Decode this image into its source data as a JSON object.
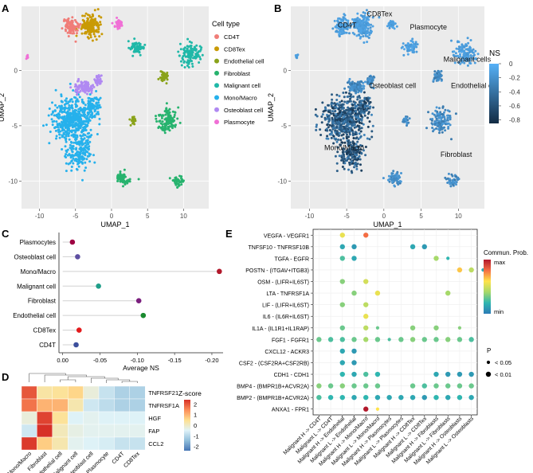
{
  "panel_labels": [
    "A",
    "B",
    "C",
    "D",
    "E"
  ],
  "chart_data": [
    {
      "id": "A",
      "type": "scatter",
      "title": "",
      "xlabel": "UMAP_1",
      "ylabel": "UMAP_2",
      "xlim": [
        -12.5,
        13.5
      ],
      "ylim": [
        -12.5,
        5.8
      ],
      "xticks": [
        -10,
        -5,
        0,
        5,
        10
      ],
      "yticks": [
        -10,
        -5,
        0
      ],
      "legend_title": "Cell type",
      "legend_position": "right",
      "series": [
        {
          "name": "CD4T",
          "color": "#f07d78"
        },
        {
          "name": "CD8Tex",
          "color": "#c99a05"
        },
        {
          "name": "Endothelial cell",
          "color": "#8aa31a"
        },
        {
          "name": "Fibroblast",
          "color": "#27b36e"
        },
        {
          "name": "Malignant cell",
          "color": "#20b8a8"
        },
        {
          "name": "Mono/Macro",
          "color": "#26b1ec"
        },
        {
          "name": "Osteoblast cell",
          "color": "#b089f2"
        },
        {
          "name": "Plasmocyte",
          "color": "#f070d6"
        }
      ],
      "clusters": [
        {
          "series": "Mono/Macro",
          "x": -5.3,
          "y": -4.5,
          "sx": 2.6,
          "sy": 1.8,
          "n": 500
        },
        {
          "series": "Mono/Macro",
          "x": -4.3,
          "y": -7.5,
          "sx": 1.6,
          "sy": 1.3,
          "n": 150
        },
        {
          "series": "Mono/Macro",
          "x": -2.6,
          "y": -3.2,
          "sx": 0.9,
          "sy": 0.8,
          "n": 80
        },
        {
          "series": "Osteoblast cell",
          "x": -3.8,
          "y": -1.5,
          "sx": 1.2,
          "sy": 0.45,
          "n": 100
        },
        {
          "series": "Osteoblast cell",
          "x": -1.8,
          "y": -0.9,
          "sx": 0.5,
          "sy": 0.4,
          "n": 40
        },
        {
          "series": "CD8Tex",
          "x": -2.9,
          "y": 4.0,
          "sx": 1.2,
          "sy": 0.9,
          "n": 170
        },
        {
          "series": "CD4T",
          "x": -5.6,
          "y": 4.0,
          "sx": 0.9,
          "sy": 0.8,
          "n": 110
        },
        {
          "series": "Plasmocyte",
          "x": 1.0,
          "y": 4.2,
          "sx": 0.5,
          "sy": 0.35,
          "n": 40
        },
        {
          "series": "Plasmocyte",
          "x": -11.7,
          "y": 1.2,
          "sx": 0.15,
          "sy": 0.2,
          "n": 10
        },
        {
          "series": "Malignant cell",
          "x": 3.5,
          "y": 2.1,
          "sx": 0.9,
          "sy": 0.5,
          "n": 60
        },
        {
          "series": "Malignant cell",
          "x": 11.0,
          "y": 1.5,
          "sx": 1.3,
          "sy": 1.0,
          "n": 120
        },
        {
          "series": "Endothelial cell",
          "x": 7.3,
          "y": -0.6,
          "sx": 0.6,
          "sy": 0.5,
          "n": 50
        },
        {
          "series": "Endothelial cell",
          "x": 3.0,
          "y": -4.5,
          "sx": 0.4,
          "sy": 0.4,
          "n": 20
        },
        {
          "series": "Fibroblast",
          "x": 7.7,
          "y": -4.5,
          "sx": 1.3,
          "sy": 1.0,
          "n": 110
        },
        {
          "series": "Fibroblast",
          "x": 1.5,
          "y": -9.8,
          "sx": 0.9,
          "sy": 0.5,
          "n": 60
        },
        {
          "series": "Fibroblast",
          "x": 9.2,
          "y": -10.0,
          "sx": 0.8,
          "sy": 0.5,
          "n": 40
        }
      ]
    },
    {
      "id": "B",
      "type": "scatter",
      "title": "",
      "xlabel": "UMAP_1",
      "ylabel": "UMAP_2",
      "xlim": [
        -12.5,
        13.5
      ],
      "ylim": [
        -12.5,
        5.8
      ],
      "xticks": [
        -10,
        -5,
        0,
        5,
        10
      ],
      "yticks": [
        -10,
        -5,
        0
      ],
      "colorbar_title": "NS",
      "colorbar_range": [
        -0.85,
        0.0
      ],
      "colorbar_ticks": [
        0.0,
        -0.2,
        -0.4,
        -0.6,
        -0.8
      ],
      "color_low": "#132b43",
      "color_high": "#56b1f7",
      "annotations": [
        {
          "text": "CD4T",
          "x": -6.2,
          "y": 3.9
        },
        {
          "text": "CD8Tex",
          "x": -2.3,
          "y": 4.9
        },
        {
          "text": "Plasmocyte",
          "x": 3.5,
          "y": 3.7
        },
        {
          "text": "Malignant cells",
          "x": 8.0,
          "y": 0.8
        },
        {
          "text": "Osteoblast cell",
          "x": -2.0,
          "y": -1.6
        },
        {
          "text": "Endothelial cell",
          "x": 9.0,
          "y": -1.6
        },
        {
          "text": "Mono/Macro",
          "x": -8.0,
          "y": -7.2
        },
        {
          "text": "Fibroblast",
          "x": 7.6,
          "y": -7.8
        }
      ]
    },
    {
      "id": "C",
      "type": "scatter",
      "title": "",
      "xlabel": "Average NS",
      "ylabel": "",
      "xlim": [
        0.005,
        -0.215
      ],
      "xticks": [
        0.0,
        -0.05,
        -0.1,
        -0.15,
        -0.2
      ],
      "xticklabels": [
        "0.00",
        "-0.05",
        "-0.10",
        "-0.15",
        "-0.20"
      ],
      "categories": [
        "Plasmocytes",
        "Osteoblast cell",
        "Mono/Macro",
        "Malignant cell",
        "Fibroblast",
        "Endothelial cell",
        "CD8Tex",
        "CD4T"
      ],
      "values": [
        -0.013,
        -0.02,
        -0.21,
        -0.048,
        -0.102,
        -0.108,
        -0.022,
        -0.018
      ],
      "colors": [
        "#9e0142",
        "#5e4fa2",
        "#b2182b",
        "#1f9e89",
        "#7b1f7e",
        "#1a8a2f",
        "#e31a1c",
        "#3c4f9c"
      ]
    },
    {
      "id": "D",
      "type": "heatmap",
      "title": "",
      "colorbar_title": "Z-score",
      "colorbar_range": [
        -2.4,
        2.4
      ],
      "colorbar_ticks": [
        2,
        1,
        0,
        -1,
        -2
      ],
      "columns": [
        "Mono/Macro",
        "Fibroblast",
        "Endothelial cell",
        "Malignant cell",
        "Osteoblast cell",
        "Plasmocyte",
        "CD4T",
        "CD8Tex"
      ],
      "rows": [
        "TNFRSF21",
        "TNFRSF1A",
        "HGF",
        "FAP",
        "CCL2"
      ],
      "values": [
        [
          2.0,
          0.3,
          0.4,
          0.6,
          -0.2,
          -0.8,
          -1.1,
          -1.1
        ],
        [
          1.7,
          1.0,
          1.0,
          0.2,
          -0.7,
          -0.9,
          -1.1,
          -1.1
        ],
        [
          -0.2,
          2.2,
          0.4,
          -0.5,
          -0.4,
          -0.5,
          -0.5,
          -0.5
        ],
        [
          -0.7,
          2.4,
          0.1,
          -0.3,
          -0.4,
          -0.4,
          -0.4,
          -0.4
        ],
        [
          2.3,
          0.7,
          0.2,
          -0.4,
          -0.5,
          -0.6,
          -0.8,
          -0.8
        ]
      ]
    },
    {
      "id": "E",
      "type": "scatter",
      "title": "",
      "rows": [
        "VEGFA - VEGFR1",
        "TNFSF10 - TNFRSF10B",
        "TGFA - EGFR",
        "POSTN - (ITGAV+ITGB3)",
        "OSM - (LIFR+IL6ST)",
        "LTA - TNFRSF1A",
        "LIF - (LIFR+IL6ST)",
        "IL6 - (IL6R+IL6ST)",
        "IL1A - (IL1R1+IL1RAP)",
        "FGF1 - FGFR1",
        "CXCL12 - ACKR3",
        "CSF2 - (CSF2RA+CSF2RB)",
        "CDH1 - CDH1",
        "BMP4 - (BMPR1B+ACVR2A)",
        "BMP2 - (BMPR1B+ACVR2A)",
        "ANXA1 - FPR1"
      ],
      "columns": [
        "Malignant H -> CD4T",
        "Malignant L -> CD4T",
        "Malignant H -> Endothelial",
        "Malignant L -> Endothelial",
        "Malignant H -> Mono/Macro",
        "Malignant L -> Mono/Macro",
        "Malignant H -> Plasmocytes",
        "Malignant L -> Plasmocytes",
        "Malignant H -> CD8Tex",
        "Malignant L -> CD8Tex",
        "Malignant H -> Fibroblasts",
        "Malignant L -> Fibroblasts",
        "Malignant H -> Osteoblasts",
        "Malignant L -> Osteoblasts"
      ],
      "colorbar_title": "Commun. Prob.",
      "colorbar_labels": [
        "max",
        "min"
      ],
      "size_legend_title": "P",
      "size_legend_labels": [
        "< 0.05",
        "< 0.01"
      ],
      "points": [
        [
          0,
          2,
          0.55,
          2
        ],
        [
          0,
          4,
          0.8,
          2
        ],
        [
          1,
          2,
          0.15,
          2
        ],
        [
          1,
          3,
          0.1,
          2
        ],
        [
          1,
          8,
          0.15,
          2
        ],
        [
          1,
          9,
          0.1,
          2
        ],
        [
          2,
          2,
          0.25,
          2
        ],
        [
          2,
          3,
          0.15,
          2
        ],
        [
          2,
          10,
          0.4,
          2
        ],
        [
          2,
          11,
          0.2,
          1
        ],
        [
          3,
          12,
          0.65,
          2
        ],
        [
          3,
          13,
          0.45,
          2
        ],
        [
          3,
          14,
          0.15,
          1
        ],
        [
          4,
          2,
          0.35,
          2
        ],
        [
          4,
          4,
          0.5,
          2
        ],
        [
          5,
          3,
          0.35,
          2
        ],
        [
          5,
          5,
          0.55,
          2
        ],
        [
          5,
          11,
          0.4,
          2
        ],
        [
          6,
          2,
          0.35,
          2
        ],
        [
          6,
          4,
          0.45,
          2
        ],
        [
          7,
          4,
          0.55,
          2
        ],
        [
          8,
          2,
          0.3,
          2
        ],
        [
          8,
          4,
          0.45,
          2
        ],
        [
          8,
          5,
          0.3,
          1
        ],
        [
          8,
          8,
          0.35,
          2
        ],
        [
          8,
          10,
          0.35,
          2
        ],
        [
          8,
          12,
          0.35,
          1
        ],
        [
          9,
          0,
          0.3,
          2
        ],
        [
          9,
          1,
          0.25,
          2
        ],
        [
          9,
          2,
          0.25,
          2
        ],
        [
          9,
          3,
          0.3,
          2
        ],
        [
          9,
          4,
          0.4,
          2
        ],
        [
          9,
          5,
          0.3,
          2
        ],
        [
          9,
          6,
          0.25,
          1
        ],
        [
          9,
          7,
          0.3,
          2
        ],
        [
          9,
          8,
          0.35,
          2
        ],
        [
          9,
          9,
          0.3,
          2
        ],
        [
          9,
          10,
          0.3,
          2
        ],
        [
          9,
          11,
          0.35,
          2
        ],
        [
          9,
          12,
          0.3,
          2
        ],
        [
          9,
          13,
          0.25,
          2
        ],
        [
          10,
          2,
          0.15,
          2
        ],
        [
          10,
          3,
          0.1,
          2
        ],
        [
          11,
          2,
          0.15,
          2
        ],
        [
          11,
          3,
          0.1,
          2
        ],
        [
          12,
          2,
          0.2,
          2
        ],
        [
          12,
          3,
          0.15,
          2
        ],
        [
          12,
          4,
          0.25,
          2
        ],
        [
          12,
          5,
          0.2,
          2
        ],
        [
          12,
          10,
          0.15,
          2
        ],
        [
          12,
          11,
          0.1,
          2
        ],
        [
          12,
          12,
          0.1,
          2
        ],
        [
          12,
          13,
          0.1,
          2
        ],
        [
          13,
          0,
          0.35,
          2
        ],
        [
          13,
          1,
          0.3,
          2
        ],
        [
          13,
          2,
          0.35,
          2
        ],
        [
          13,
          3,
          0.3,
          2
        ],
        [
          13,
          4,
          0.3,
          2
        ],
        [
          13,
          5,
          0.3,
          2
        ],
        [
          13,
          8,
          0.3,
          2
        ],
        [
          13,
          9,
          0.25,
          2
        ],
        [
          13,
          10,
          0.3,
          2
        ],
        [
          13,
          11,
          0.3,
          2
        ],
        [
          13,
          12,
          0.3,
          2
        ],
        [
          13,
          13,
          0.3,
          2
        ],
        [
          14,
          0,
          0.25,
          2
        ],
        [
          14,
          1,
          0.2,
          2
        ],
        [
          14,
          2,
          0.2,
          2
        ],
        [
          14,
          3,
          0.15,
          2
        ],
        [
          14,
          4,
          0.2,
          2
        ],
        [
          14,
          5,
          0.15,
          2
        ],
        [
          14,
          6,
          0.15,
          2
        ],
        [
          14,
          7,
          0.15,
          2
        ],
        [
          14,
          8,
          0.15,
          2
        ],
        [
          14,
          9,
          0.1,
          2
        ],
        [
          14,
          10,
          0.2,
          2
        ],
        [
          14,
          11,
          0.15,
          2
        ],
        [
          14,
          12,
          0.2,
          2
        ],
        [
          14,
          13,
          0.15,
          2
        ],
        [
          15,
          4,
          1.0,
          2
        ],
        [
          15,
          5,
          0.6,
          1
        ]
      ]
    }
  ]
}
